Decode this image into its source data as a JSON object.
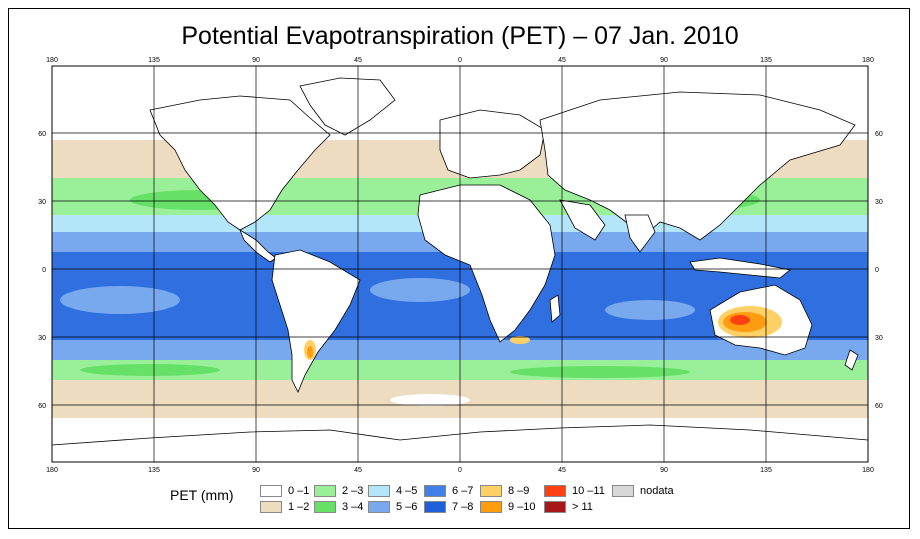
{
  "title": "Potential Evapotranspiration (PET) – 07 Jan. 2010",
  "map": {
    "lon_ticks": [
      "180",
      "135",
      "90",
      "45",
      "0",
      "45",
      "90",
      "135",
      "180"
    ],
    "lat_ticks": [
      "60",
      "30",
      "0",
      "30",
      "60"
    ],
    "colors": {
      "ocean_tropic": "#2f6fe0",
      "ocean_mid": "#78a8ee",
      "ocean_light": "#b2e6f8",
      "green": "#99f099",
      "tan": "#eedcc0",
      "land": "#ffffff"
    }
  },
  "legend": {
    "title": "PET (mm)",
    "items": [
      {
        "label": "0 –1",
        "color": "#ffffff"
      },
      {
        "label": "1 –2",
        "color": "#eedcc0"
      },
      {
        "label": "2 –3",
        "color": "#99f099"
      },
      {
        "label": "3 –4",
        "color": "#66e066"
      },
      {
        "label": "4 –5",
        "color": "#b2e6f8"
      },
      {
        "label": "5 –6",
        "color": "#78a8ee"
      },
      {
        "label": "6 –7",
        "color": "#3f7fe6"
      },
      {
        "label": "7 –8",
        "color": "#1f5fd8"
      },
      {
        "label": "8 –9",
        "color": "#ffd066"
      },
      {
        "label": "9 –10",
        "color": "#ff9c10"
      },
      {
        "label": "10 –11",
        "color": "#ff4010"
      },
      {
        "label": "> 11",
        "color": "#a81818"
      },
      {
        "label": "nodata",
        "color": "#d8d8d8"
      }
    ]
  }
}
